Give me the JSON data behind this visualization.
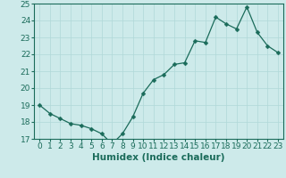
{
  "x": [
    0,
    1,
    2,
    3,
    4,
    5,
    6,
    7,
    8,
    9,
    10,
    11,
    12,
    13,
    14,
    15,
    16,
    17,
    18,
    19,
    20,
    21,
    22,
    23
  ],
  "y": [
    19.0,
    18.5,
    18.2,
    17.9,
    17.8,
    17.6,
    17.3,
    16.7,
    17.3,
    18.3,
    19.7,
    20.5,
    20.8,
    21.4,
    21.5,
    22.8,
    22.7,
    24.2,
    23.8,
    23.5,
    24.8,
    23.3,
    22.5,
    22.1
  ],
  "line_color": "#1a6b5a",
  "marker": "D",
  "marker_size": 2.5,
  "bg_color": "#cdeaea",
  "grid_color": "#b0d8d8",
  "xlabel": "Humidex (Indice chaleur)",
  "ylim": [
    17,
    25
  ],
  "xlim": [
    -0.5,
    23.5
  ],
  "yticks": [
    17,
    18,
    19,
    20,
    21,
    22,
    23,
    24,
    25
  ],
  "xticks": [
    0,
    1,
    2,
    3,
    4,
    5,
    6,
    7,
    8,
    9,
    10,
    11,
    12,
    13,
    14,
    15,
    16,
    17,
    18,
    19,
    20,
    21,
    22,
    23
  ],
  "tick_color": "#1a6b5a",
  "label_color": "#1a6b5a",
  "label_fontsize": 7.5,
  "tick_fontsize": 6.5
}
